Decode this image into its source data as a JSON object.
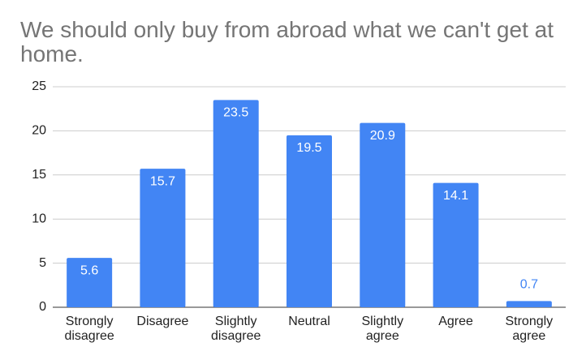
{
  "chart_data": {
    "type": "bar",
    "title": "We should only buy from abroad what we can't get at home.",
    "categories": [
      "Strongly disagree",
      "Disagree",
      "Slightly disagree",
      "Neutral",
      "Slightly agree",
      "Agree",
      "Strongly agree"
    ],
    "values": [
      5.6,
      15.7,
      23.5,
      19.5,
      20.9,
      14.1,
      0.7
    ],
    "color": "#4285f4",
    "ylim": [
      0,
      25
    ],
    "yticks": [
      0,
      5,
      10,
      15,
      20,
      25
    ],
    "grid": true
  }
}
